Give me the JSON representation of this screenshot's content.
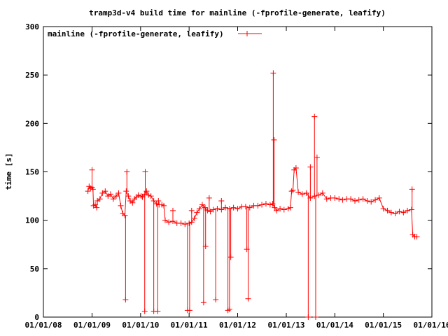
{
  "chart_data": {
    "type": "line",
    "title": "tramp3d-v4 build time for mainline (-fprofile-generate, leafify)",
    "xlabel": "",
    "ylabel": "time [s]",
    "xlim": [
      "2008-01-01",
      "2016-01-01"
    ],
    "ylim": [
      0,
      300
    ],
    "x_ticks": [
      "01/01/08",
      "01/01/09",
      "01/01/10",
      "01/01/11",
      "01/01/12",
      "01/01/13",
      "01/01/14",
      "01/01/15",
      "01/01/16"
    ],
    "y_ticks": [
      "0",
      "50",
      "100",
      "150",
      "200",
      "250",
      "300"
    ],
    "grid": false,
    "legend_position": "top-left",
    "color": "#ff0000",
    "series": [
      {
        "name": "mainline (-fprofile-generate, leafify)",
        "points": [
          [
            "2008-12-01",
            130
          ],
          [
            "2008-12-10",
            135
          ],
          [
            "2008-12-20",
            133
          ],
          [
            "2009-01-01",
            134
          ],
          [
            "2009-01-08",
            132
          ],
          [
            "2009-01-12",
            115
          ],
          [
            "2009-01-25",
            116
          ],
          [
            "2009-02-05",
            113
          ],
          [
            "2009-02-10",
            120
          ],
          [
            "2009-03-01",
            122
          ],
          [
            "2009-03-20",
            128
          ],
          [
            "2009-04-10",
            130
          ],
          [
            "2009-05-01",
            125
          ],
          [
            "2009-05-20",
            127
          ],
          [
            "2009-06-10",
            122
          ],
          [
            "2009-07-01",
            125
          ],
          [
            "2009-07-20",
            128
          ],
          [
            "2009-08-05",
            115
          ],
          [
            "2009-08-20",
            107
          ],
          [
            "2009-09-05",
            105
          ],
          [
            "2009-09-15",
            130
          ],
          [
            "2009-10-01",
            125
          ],
          [
            "2009-10-15",
            120
          ],
          [
            "2009-11-01",
            118
          ],
          [
            "2009-11-15",
            122
          ],
          [
            "2009-12-01",
            124
          ],
          [
            "2009-12-15",
            126
          ],
          [
            "2010-01-05",
            125
          ],
          [
            "2010-01-15",
            124
          ],
          [
            "2010-02-01",
            127
          ],
          [
            "2010-02-15",
            130
          ],
          [
            "2010-03-01",
            126
          ],
          [
            "2010-03-20",
            125
          ],
          [
            "2010-04-10",
            120
          ],
          [
            "2010-05-01",
            117
          ],
          [
            "2010-05-20",
            116
          ],
          [
            "2010-06-10",
            116
          ],
          [
            "2010-06-25",
            115
          ],
          [
            "2010-07-05",
            100
          ],
          [
            "2010-08-01",
            98
          ],
          [
            "2010-09-01",
            99
          ],
          [
            "2010-10-01",
            97
          ],
          [
            "2010-11-01",
            97
          ],
          [
            "2010-12-01",
            96
          ],
          [
            "2011-01-01",
            97
          ],
          [
            "2011-01-20",
            98
          ],
          [
            "2011-02-10",
            102
          ],
          [
            "2011-03-01",
            108
          ],
          [
            "2011-03-20",
            112
          ],
          [
            "2011-04-10",
            116
          ],
          [
            "2011-05-01",
            113
          ],
          [
            "2011-05-20",
            110
          ],
          [
            "2011-06-10",
            109
          ],
          [
            "2011-07-01",
            111
          ],
          [
            "2011-08-01",
            112
          ],
          [
            "2011-09-01",
            111
          ],
          [
            "2011-10-01",
            113
          ],
          [
            "2011-11-01",
            112
          ],
          [
            "2011-12-01",
            113
          ],
          [
            "2012-01-01",
            112
          ],
          [
            "2012-02-01",
            114
          ],
          [
            "2012-03-01",
            114
          ],
          [
            "2012-04-01",
            113
          ],
          [
            "2012-05-01",
            115
          ],
          [
            "2012-06-01",
            115
          ],
          [
            "2012-07-01",
            116
          ],
          [
            "2012-08-01",
            117
          ],
          [
            "2012-09-01",
            116
          ],
          [
            "2012-09-20",
            117
          ],
          [
            "2012-10-05",
            113
          ],
          [
            "2012-10-20",
            110
          ],
          [
            "2012-11-15",
            112
          ],
          [
            "2012-12-15",
            111
          ],
          [
            "2013-01-15",
            112
          ],
          [
            "2013-02-01",
            113
          ],
          [
            "2013-02-10",
            130
          ],
          [
            "2013-02-20",
            131
          ],
          [
            "2013-03-01",
            152
          ],
          [
            "2013-03-15",
            154
          ],
          [
            "2013-04-01",
            129
          ],
          [
            "2013-05-01",
            127
          ],
          [
            "2013-06-01",
            128
          ],
          [
            "2013-07-01",
            123
          ],
          [
            "2013-08-01",
            125
          ],
          [
            "2013-09-01",
            126
          ],
          [
            "2013-10-01",
            128
          ],
          [
            "2013-11-01",
            122
          ],
          [
            "2013-12-01",
            123
          ],
          [
            "2014-01-01",
            123
          ],
          [
            "2014-02-01",
            122
          ],
          [
            "2014-03-01",
            121
          ],
          [
            "2014-04-01",
            122
          ],
          [
            "2014-05-01",
            122
          ],
          [
            "2014-06-01",
            120
          ],
          [
            "2014-07-01",
            121
          ],
          [
            "2014-08-01",
            122
          ],
          [
            "2014-09-01",
            120
          ],
          [
            "2014-10-01",
            119
          ],
          [
            "2014-11-01",
            121
          ],
          [
            "2014-12-01",
            123
          ],
          [
            "2015-01-01",
            112
          ],
          [
            "2015-02-01",
            110
          ],
          [
            "2015-03-01",
            108
          ],
          [
            "2015-04-01",
            107
          ],
          [
            "2015-05-01",
            109
          ],
          [
            "2015-06-01",
            108
          ],
          [
            "2015-07-01",
            110
          ],
          [
            "2015-08-01",
            111
          ],
          [
            "2015-08-10",
            85
          ],
          [
            "2015-08-25",
            83
          ],
          [
            "2015-09-10",
            83
          ]
        ],
        "spikes": [
          [
            "2009-01-01",
            152
          ],
          [
            "2009-09-10",
            18
          ],
          [
            "2009-09-20",
            150
          ],
          [
            "2010-02-01",
            6
          ],
          [
            "2010-02-05",
            150
          ],
          [
            "2010-04-10",
            6
          ],
          [
            "2010-05-10",
            6
          ],
          [
            "2010-05-15",
            120
          ],
          [
            "2010-09-01",
            110
          ],
          [
            "2010-12-20",
            7
          ],
          [
            "2011-01-05",
            7
          ],
          [
            "2011-01-20",
            110
          ],
          [
            "2011-04-20",
            15
          ],
          [
            "2011-05-05",
            73
          ],
          [
            "2011-06-01",
            123
          ],
          [
            "2011-07-20",
            18
          ],
          [
            "2011-09-01",
            120
          ],
          [
            "2011-10-20",
            7
          ],
          [
            "2011-11-01",
            8
          ],
          [
            "2011-11-10",
            62
          ],
          [
            "2012-03-10",
            70
          ],
          [
            "2012-03-20",
            19
          ],
          [
            "2012-09-25",
            252
          ],
          [
            "2012-10-01",
            183
          ],
          [
            "2013-06-15",
            0
          ],
          [
            "2013-07-01",
            155
          ],
          [
            "2013-08-01",
            207
          ],
          [
            "2013-08-10",
            0
          ],
          [
            "2013-08-20",
            165
          ],
          [
            "2015-08-05",
            132
          ]
        ]
      }
    ]
  }
}
